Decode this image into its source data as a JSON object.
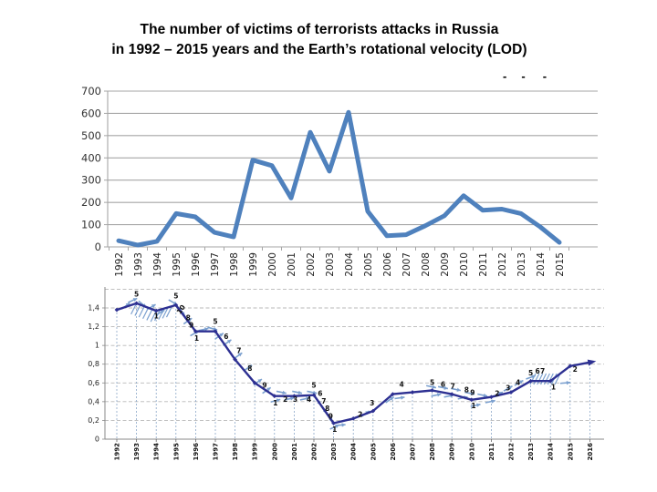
{
  "title": {
    "line1": "The number of victims of terrorists attacks in Russia",
    "line2": "in 1992 – 2015 years and the Earth’s rotational velocity (LOD)"
  },
  "legend_fragment": {
    "dash1": "-",
    "dash2": "-",
    "dash3": "-"
  },
  "colors": {
    "victims_line": "#4f81bd",
    "grid_gray": "#a6a6a6",
    "lod_line": "#2d3092",
    "arrow_blue": "#7ba0cf",
    "drop_line": "#8aa6c8",
    "dashed_grid": "#b8b8b8",
    "axis_text": "#333333"
  },
  "chart_data": [
    {
      "type": "line",
      "name": "victims-of-terrorist-attacks",
      "categories": [
        "1992",
        "1993",
        "1994",
        "1995",
        "1996",
        "1997",
        "1998",
        "1999",
        "2000",
        "2001",
        "2002",
        "2003",
        "2004",
        "2005",
        "2006",
        "2007",
        "2008",
        "2009",
        "2010",
        "2011",
        "2012",
        "2013",
        "2014",
        "2015"
      ],
      "values": [
        28,
        8,
        25,
        150,
        135,
        65,
        45,
        390,
        365,
        220,
        515,
        340,
        605,
        160,
        50,
        55,
        95,
        140,
        230,
        165,
        170,
        150,
        90,
        20
      ],
      "title": "",
      "xlabel": "",
      "ylabel": "",
      "ylim": [
        0,
        700
      ],
      "yticks": [
        0,
        100,
        200,
        300,
        400,
        500,
        600,
        700
      ],
      "ytick_labels": [
        "0",
        "100",
        "200",
        "300",
        "400",
        "500",
        "600",
        "700"
      ],
      "grid": "horizontal solid",
      "legend_position": "none"
    },
    {
      "type": "line",
      "name": "earth-rotational-velocity-LOD",
      "categories": [
        "1992",
        "1993",
        "1994",
        "1995",
        "1996",
        "1997",
        "1998",
        "1999",
        "2000",
        "2001",
        "2002",
        "2003",
        "2004",
        "2005",
        "2006",
        "2007",
        "2008",
        "2009",
        "2010",
        "2011",
        "2012",
        "2013",
        "2014",
        "2015",
        "2016"
      ],
      "values": [
        1.38,
        1.45,
        1.37,
        1.43,
        1.15,
        1.15,
        0.85,
        0.6,
        0.46,
        0.46,
        0.47,
        0.17,
        0.22,
        0.3,
        0.48,
        0.5,
        0.52,
        0.48,
        0.42,
        0.45,
        0.5,
        0.62,
        0.62,
        0.78,
        0.82
      ],
      "title": "",
      "xlabel": "",
      "ylabel": "",
      "ylim": [
        0,
        1.65
      ],
      "yticks": [
        0,
        0.2,
        0.4,
        0.6,
        0.8,
        1.0,
        1.2,
        1.4
      ],
      "ytick_labels": [
        "0",
        "0,2",
        "0,4",
        "0,6",
        "0,8",
        "1",
        "1,2",
        "1,4"
      ],
      "extra_gridlines": [
        1.6
      ],
      "grid": "horizontal dashed + vertical drop lines",
      "legend_position": "none",
      "end_arrow": true,
      "annotations": [
        {
          "x": 1993.0,
          "y": 1.52,
          "t": "5"
        },
        {
          "x": 1994.0,
          "y": 1.29,
          "t": "1"
        },
        {
          "x": 1995.0,
          "y": 1.5,
          "t": "5"
        },
        {
          "x": 1995.35,
          "y": 1.37,
          "t": "10",
          "r": -55
        },
        {
          "x": 1995.62,
          "y": 1.27,
          "t": "8"
        },
        {
          "x": 1995.78,
          "y": 1.19,
          "t": "9"
        },
        {
          "x": 1996.05,
          "y": 1.05,
          "t": "1"
        },
        {
          "x": 1997.0,
          "y": 1.23,
          "t": "5"
        },
        {
          "x": 1997.55,
          "y": 1.07,
          "t": "6"
        },
        {
          "x": 1998.2,
          "y": 0.92,
          "t": "7"
        },
        {
          "x": 1998.75,
          "y": 0.73,
          "t": "8"
        },
        {
          "x": 1999.5,
          "y": 0.55,
          "t": "9"
        },
        {
          "x": 2000.05,
          "y": 0.36,
          "t": "1"
        },
        {
          "x": 2000.55,
          "y": 0.4,
          "t": "2"
        },
        {
          "x": 2001.05,
          "y": 0.4,
          "t": "3"
        },
        {
          "x": 2001.75,
          "y": 0.4,
          "t": "4"
        },
        {
          "x": 2002.0,
          "y": 0.55,
          "t": "5"
        },
        {
          "x": 2002.32,
          "y": 0.46,
          "t": "6"
        },
        {
          "x": 2002.5,
          "y": 0.38,
          "t": "7"
        },
        {
          "x": 2002.68,
          "y": 0.3,
          "t": "8"
        },
        {
          "x": 2002.85,
          "y": 0.22,
          "t": "9"
        },
        {
          "x": 2003.05,
          "y": 0.08,
          "t": "1"
        },
        {
          "x": 2004.35,
          "y": 0.24,
          "t": "2"
        },
        {
          "x": 2004.95,
          "y": 0.36,
          "t": "3"
        },
        {
          "x": 2006.45,
          "y": 0.56,
          "t": "4"
        },
        {
          "x": 2008.0,
          "y": 0.58,
          "t": "5"
        },
        {
          "x": 2008.55,
          "y": 0.56,
          "t": "6"
        },
        {
          "x": 2009.05,
          "y": 0.54,
          "t": "7"
        },
        {
          "x": 2009.75,
          "y": 0.5,
          "t": "8"
        },
        {
          "x": 2010.05,
          "y": 0.47,
          "t": "9"
        },
        {
          "x": 2010.1,
          "y": 0.33,
          "t": "1"
        },
        {
          "x": 2011.3,
          "y": 0.46,
          "t": "2"
        },
        {
          "x": 2011.85,
          "y": 0.52,
          "t": "3"
        },
        {
          "x": 2012.35,
          "y": 0.58,
          "t": "4"
        },
        {
          "x": 2013.0,
          "y": 0.68,
          "t": "5"
        },
        {
          "x": 2013.35,
          "y": 0.7,
          "t": "6"
        },
        {
          "x": 2013.6,
          "y": 0.7,
          "t": "7"
        },
        {
          "x": 2014.15,
          "y": 0.53,
          "t": "1"
        },
        {
          "x": 2015.25,
          "y": 0.72,
          "t": "2"
        }
      ],
      "arrows": [
        {
          "x": 1992.45,
          "y": 1.42,
          "a": 35
        },
        {
          "x": 1992.8,
          "y": 1.48,
          "a": 25
        },
        {
          "x": 1993.3,
          "y": 1.44,
          "a": -40
        },
        {
          "x": 1993.75,
          "y": 1.41,
          "a": 30
        },
        {
          "x": 1994.2,
          "y": 1.35,
          "a": 30
        },
        {
          "x": 1994.85,
          "y": 1.46,
          "a": -30
        },
        {
          "x": 1995.3,
          "y": 1.36,
          "a": -55
        },
        {
          "x": 1995.6,
          "y": 1.26,
          "a": 35
        },
        {
          "x": 1995.95,
          "y": 1.13,
          "a": 30
        },
        {
          "x": 1996.4,
          "y": 1.17,
          "a": 12
        },
        {
          "x": 1996.85,
          "y": 1.18,
          "a": -15
        },
        {
          "x": 1997.2,
          "y": 1.1,
          "a": 35
        },
        {
          "x": 1997.6,
          "y": 1.03,
          "a": 35
        },
        {
          "x": 1998.15,
          "y": 0.89,
          "a": 35
        },
        {
          "x": 1998.65,
          "y": 0.76,
          "a": 35
        },
        {
          "x": 1999.15,
          "y": 0.61,
          "a": 35
        },
        {
          "x": 1999.6,
          "y": 0.52,
          "a": 35
        },
        {
          "x": 2000.05,
          "y": 0.41,
          "a": 15
        },
        {
          "x": 2000.35,
          "y": 0.5,
          "a": -12
        },
        {
          "x": 2000.75,
          "y": 0.43,
          "a": 12
        },
        {
          "x": 2001.15,
          "y": 0.5,
          "a": -12
        },
        {
          "x": 2001.55,
          "y": 0.43,
          "a": 12
        },
        {
          "x": 2001.9,
          "y": 0.5,
          "a": -12
        },
        {
          "x": 2002.2,
          "y": 0.41,
          "a": -55
        },
        {
          "x": 2002.5,
          "y": 0.32,
          "a": -55
        },
        {
          "x": 2002.8,
          "y": 0.23,
          "a": -55
        },
        {
          "x": 2003.05,
          "y": 0.13,
          "a": 25
        },
        {
          "x": 2003.35,
          "y": 0.15,
          "a": 5
        },
        {
          "x": 2004.6,
          "y": 0.27,
          "a": 35
        },
        {
          "x": 2005.85,
          "y": 0.42,
          "a": 35
        },
        {
          "x": 2006.35,
          "y": 0.44,
          "a": 8
        },
        {
          "x": 2007.95,
          "y": 0.56,
          "a": -12
        },
        {
          "x": 2008.2,
          "y": 0.47,
          "a": 12
        },
        {
          "x": 2008.55,
          "y": 0.55,
          "a": -12
        },
        {
          "x": 2008.85,
          "y": 0.46,
          "a": 12
        },
        {
          "x": 2009.2,
          "y": 0.53,
          "a": -12
        },
        {
          "x": 2009.55,
          "y": 0.44,
          "a": 12
        },
        {
          "x": 2009.9,
          "y": 0.49,
          "a": -12
        },
        {
          "x": 2010.2,
          "y": 0.36,
          "a": 12
        },
        {
          "x": 2010.55,
          "y": 0.47,
          "a": -12
        },
        {
          "x": 2010.95,
          "y": 0.4,
          "a": 12
        },
        {
          "x": 2011.35,
          "y": 0.48,
          "a": 25
        },
        {
          "x": 2011.85,
          "y": 0.54,
          "a": 30
        },
        {
          "x": 2012.4,
          "y": 0.6,
          "a": 30
        },
        {
          "x": 2013.0,
          "y": 0.66,
          "a": 20
        },
        {
          "x": 2014.75,
          "y": 0.6,
          "a": 5
        }
      ],
      "hatches": [
        {
          "x_start": 1993.0,
          "x_end": 1994.8,
          "n": 10,
          "mode": "curve"
        },
        {
          "x_start": 2013.25,
          "x_end": 2014.5,
          "n": 8,
          "y_top": 0.7
        }
      ]
    }
  ]
}
